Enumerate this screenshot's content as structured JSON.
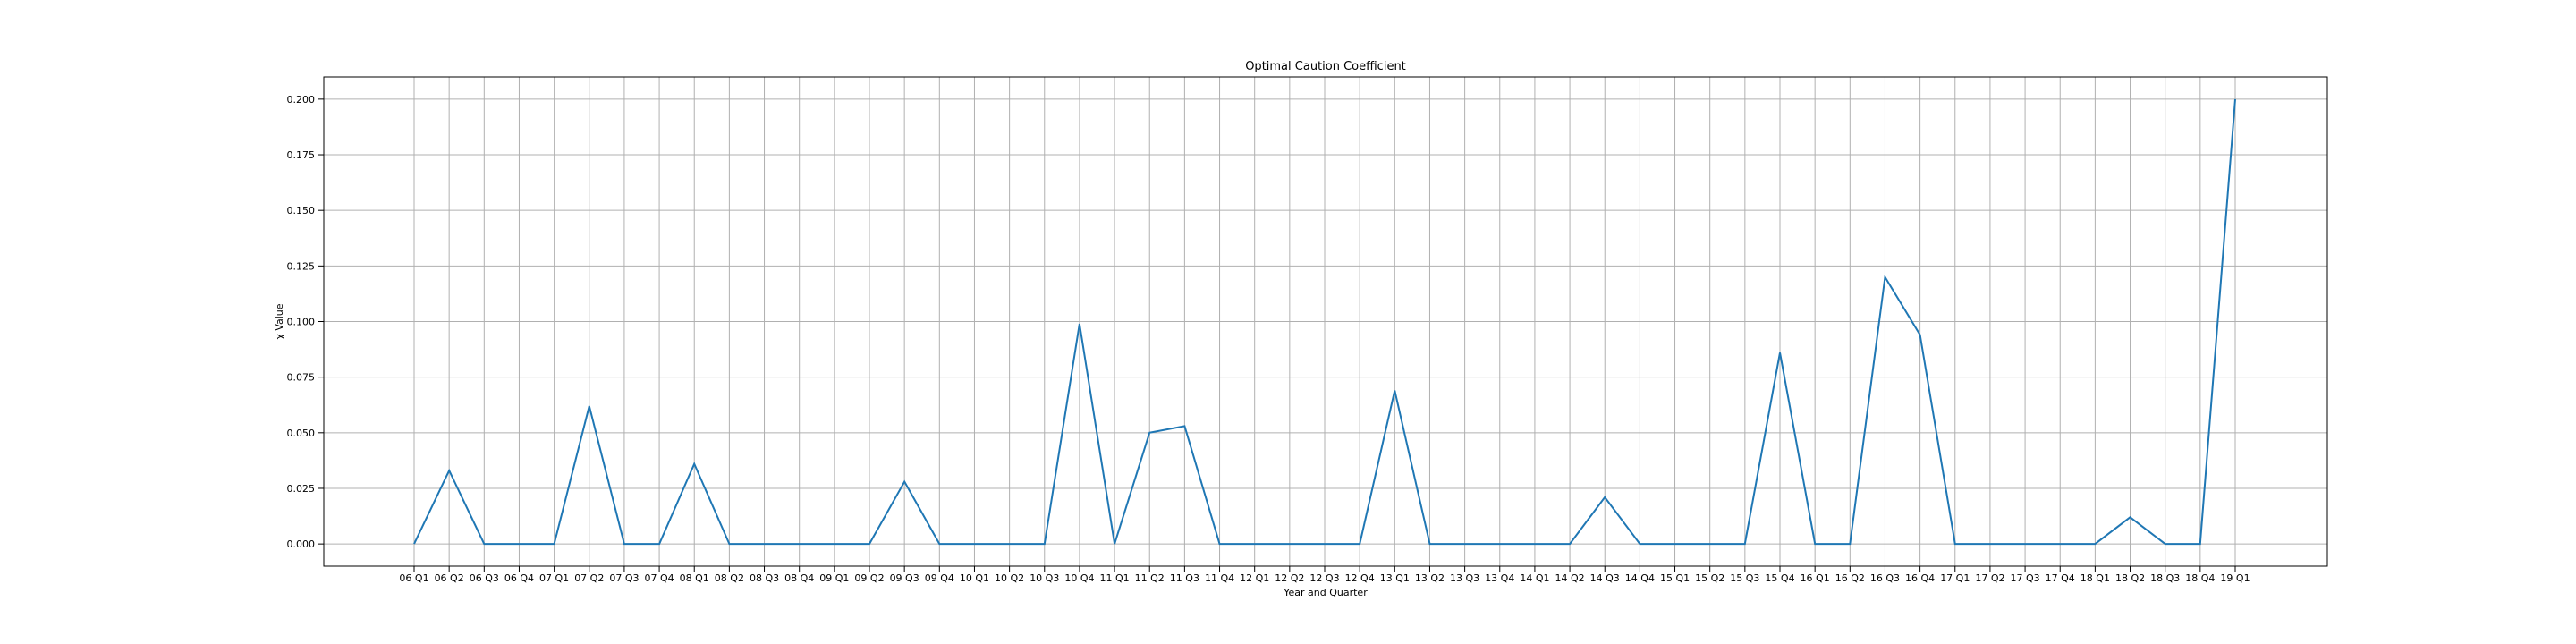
{
  "chart_data": {
    "type": "line",
    "title": "Optimal Caution Coefficient",
    "xlabel": "Year and Quarter",
    "ylabel": "χ Value",
    "categories": [
      "06 Q1",
      "06 Q2",
      "06 Q3",
      "06 Q4",
      "07 Q1",
      "07 Q2",
      "07 Q3",
      "07 Q4",
      "08 Q1",
      "08 Q2",
      "08 Q3",
      "08 Q4",
      "09 Q1",
      "09 Q2",
      "09 Q3",
      "09 Q4",
      "10 Q1",
      "10 Q2",
      "10 Q3",
      "10 Q4",
      "11 Q1",
      "11 Q2",
      "11 Q3",
      "11 Q4",
      "12 Q1",
      "12 Q2",
      "12 Q3",
      "12 Q4",
      "13 Q1",
      "13 Q2",
      "13 Q3",
      "13 Q4",
      "14 Q1",
      "14 Q2",
      "14 Q3",
      "14 Q4",
      "15 Q1",
      "15 Q2",
      "15 Q3",
      "15 Q4",
      "16 Q1",
      "16 Q2",
      "16 Q3",
      "16 Q4",
      "17 Q1",
      "17 Q2",
      "17 Q3",
      "17 Q4",
      "18 Q1",
      "18 Q2",
      "18 Q3",
      "18 Q4",
      "19 Q1"
    ],
    "series": [
      {
        "values": [
          0.0,
          0.033,
          0.0,
          0.0,
          0.0,
          0.062,
          0.0,
          0.0,
          0.036,
          0.0,
          0.0,
          0.0,
          0.0,
          0.0,
          0.028,
          0.0,
          0.0,
          0.0,
          0.0,
          0.099,
          0.0,
          0.05,
          0.053,
          0.0,
          0.0,
          0.0,
          0.0,
          0.0,
          0.069,
          0.0,
          0.0,
          0.0,
          0.0,
          0.0,
          0.021,
          0.0,
          0.0,
          0.0,
          0.0,
          0.086,
          0.0,
          0.0,
          0.12,
          0.094,
          0.0,
          0.0,
          0.0,
          0.0,
          0.0,
          0.012,
          0.0,
          0.0,
          0.2
        ],
        "color": "#1f77b4"
      }
    ],
    "yticks": [
      "0.000",
      "0.025",
      "0.050",
      "0.075",
      "0.100",
      "0.125",
      "0.150",
      "0.175",
      "0.200"
    ],
    "ylim": [
      -0.01,
      0.21
    ],
    "grid": true,
    "legend": "none"
  }
}
